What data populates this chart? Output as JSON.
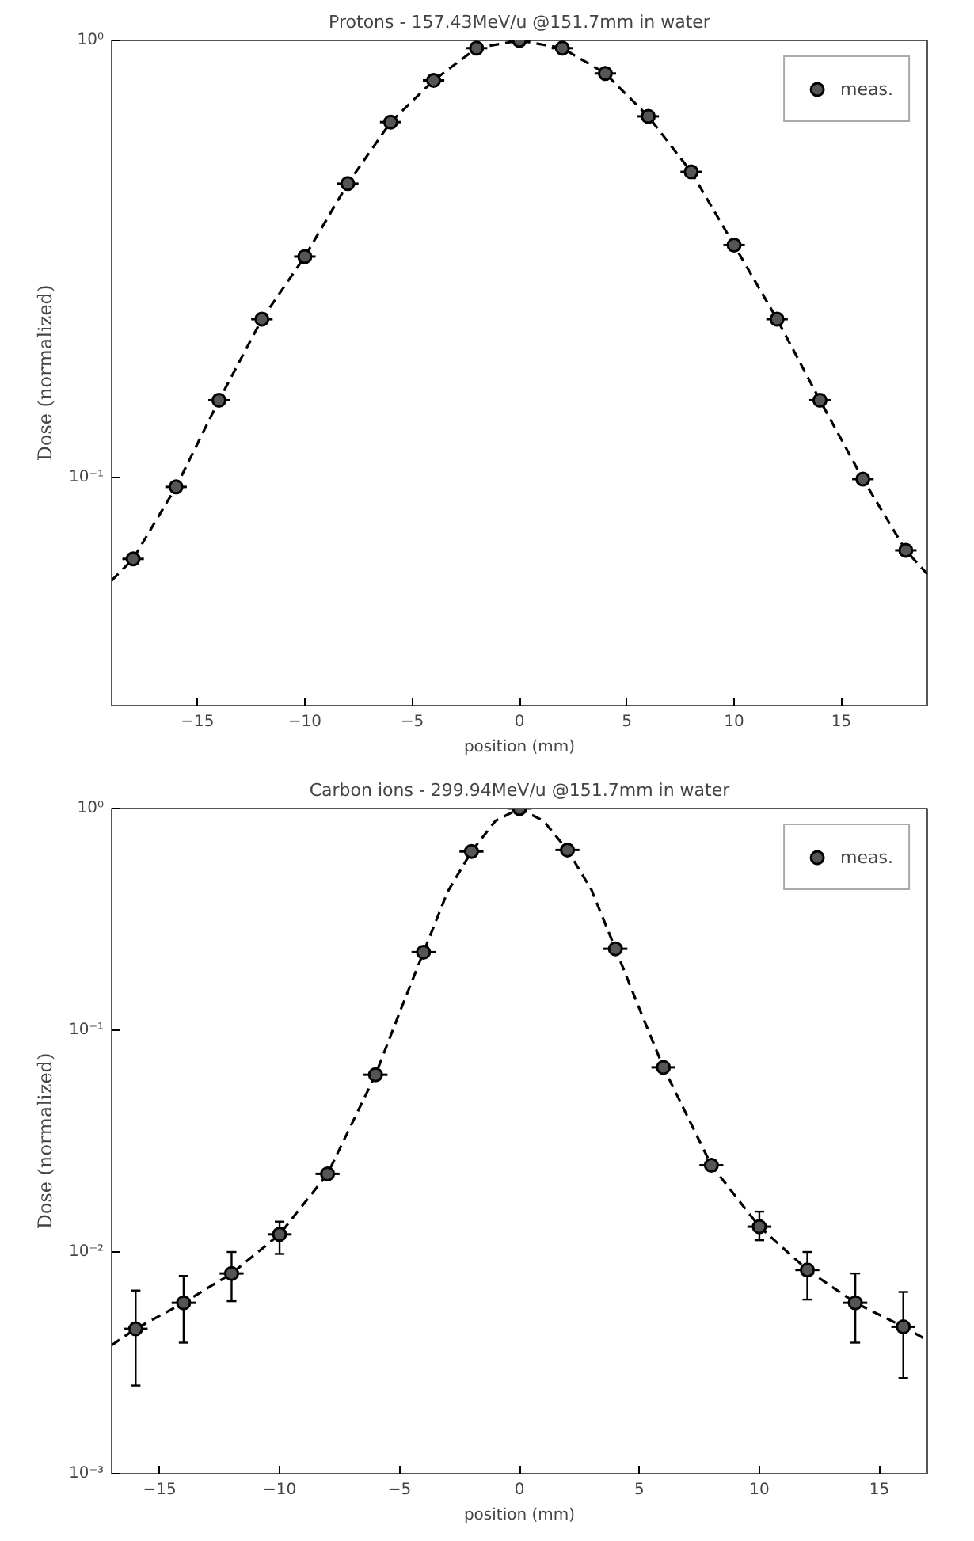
{
  "chart_data": [
    {
      "type": "scatter",
      "title": "Protons - 157.43MeV/u @151.7mm in water",
      "xlabel": "position (mm)",
      "ylabel": "Dose (normalized)",
      "log": "y",
      "legend": "top right",
      "grid": false,
      "xlim": [
        -19,
        19
      ],
      "xticks": [
        -15,
        -10,
        -5,
        0,
        5,
        10,
        15
      ],
      "ylim": [
        0.03,
        1
      ],
      "yticks": [
        {
          "value": 0.1,
          "label": "10⁻¹"
        },
        {
          "value": 1,
          "label": "10⁰"
        }
      ],
      "series": [
        {
          "type": "line",
          "line_style": "dashed",
          "color": "#000000",
          "x": [
            -19,
            -18,
            -16,
            -14,
            -12,
            -10,
            -8,
            -6,
            -4,
            -2,
            0,
            2,
            4,
            6,
            8,
            10,
            12,
            14,
            16,
            18,
            19
          ],
          "values": [
            0.058,
            0.065,
            0.095,
            0.15,
            0.23,
            0.32,
            0.47,
            0.65,
            0.81,
            0.96,
            1.0,
            0.96,
            0.84,
            0.67,
            0.5,
            0.34,
            0.23,
            0.15,
            0.099,
            0.068,
            0.06
          ]
        },
        {
          "name": "meas.",
          "marker": "circle",
          "color": "#000000",
          "x": [
            -18,
            -16,
            -14,
            -12,
            -10,
            -8,
            -6,
            -4,
            -2,
            0,
            2,
            4,
            6,
            8,
            10,
            12,
            14,
            16,
            18
          ],
          "values": [
            0.065,
            0.095,
            0.15,
            0.23,
            0.32,
            0.47,
            0.65,
            0.81,
            0.96,
            1.0,
            0.96,
            0.84,
            0.67,
            0.5,
            0.34,
            0.23,
            0.15,
            0.099,
            0.068
          ],
          "xerrors": [
            0.5,
            0.5,
            0.5,
            0.5,
            0.5,
            0.5,
            0.5,
            0.5,
            0.5,
            0.5,
            0.5,
            0.5,
            0.5,
            0.5,
            0.5,
            0.5,
            0.5,
            0.5,
            0.5
          ]
        }
      ]
    },
    {
      "type": "scatter",
      "title": "Carbon ions - 299.94MeV/u @151.7mm in water",
      "xlabel": "position (mm)",
      "ylabel": "Dose (normalized)",
      "log": "y",
      "legend": "top right",
      "grid": false,
      "xlim": [
        -17,
        17
      ],
      "xticks": [
        {
          "value": -15,
          "label": "−15"
        },
        {
          "value": -10,
          "label": "−10"
        },
        {
          "value": -5,
          "label": "−5"
        },
        0,
        5,
        10,
        15
      ],
      "ylim": [
        0.001,
        1
      ],
      "yticks": [
        {
          "value": 0.001,
          "label": "10⁻³"
        },
        {
          "value": 0.01,
          "label": "10⁻²"
        },
        {
          "value": 0.1,
          "label": "10⁻¹"
        },
        {
          "value": 1,
          "label": "10⁰"
        }
      ],
      "series": [
        {
          "type": "line",
          "line_style": "dashed",
          "color": "#000000",
          "x": [
            -17,
            -16,
            -14,
            -12,
            -10,
            -8,
            -6,
            -5,
            -4,
            -3,
            -2,
            -1,
            0,
            1,
            2,
            3,
            4,
            5,
            6,
            8,
            10,
            12,
            14,
            16,
            17
          ],
          "values": [
            0.0038,
            0.0045,
            0.0059,
            0.008,
            0.012,
            0.0225,
            0.063,
            0.12,
            0.225,
            0.42,
            0.64,
            0.88,
            1.0,
            0.88,
            0.65,
            0.43,
            0.233,
            0.125,
            0.068,
            0.0246,
            0.013,
            0.0083,
            0.0059,
            0.0046,
            0.004
          ]
        },
        {
          "name": "meas.",
          "marker": "circle",
          "color": "#000000",
          "x": [
            -16,
            -14,
            -12,
            -10,
            -8,
            -6,
            -4,
            -2,
            0,
            2,
            4,
            6,
            8,
            10,
            12,
            14,
            16
          ],
          "values": [
            0.0045,
            0.0059,
            0.008,
            0.012,
            0.0225,
            0.063,
            0.225,
            0.64,
            1.0,
            0.65,
            0.233,
            0.068,
            0.0246,
            0.013,
            0.0083,
            0.0059,
            0.0046
          ],
          "errors": [
            [
              0.0025,
              0.0067
            ],
            [
              0.0039,
              0.0078
            ],
            [
              0.006,
              0.01
            ],
            [
              0.0098,
              0.0137
            ],
            null,
            null,
            null,
            null,
            null,
            null,
            null,
            null,
            null,
            [
              0.0113,
              0.0152
            ],
            [
              0.0061,
              0.01
            ],
            [
              0.0039,
              0.008
            ],
            [
              0.0027,
              0.0066
            ]
          ],
          "xerrors": [
            0.5,
            0.5,
            0.5,
            0.5,
            0.5,
            0.5,
            0.5,
            0.5,
            0.5,
            0.5,
            0.5,
            0.5,
            0.5,
            0.5,
            0.5,
            0.5,
            0.5
          ]
        }
      ]
    }
  ]
}
